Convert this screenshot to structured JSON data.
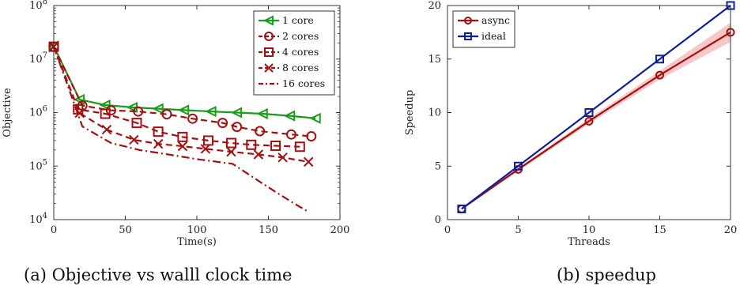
{
  "captions": {
    "left": "(a) Objective vs walll clock time",
    "right": "(b) speedup"
  },
  "chart_data": [
    {
      "type": "line",
      "xlabel": "Time(s)",
      "ylabel": "Objective",
      "xlim": [
        0,
        200
      ],
      "ylim": [
        10000,
        100000000
      ],
      "yscale": "log",
      "xticks": [
        0,
        50,
        100,
        150,
        200
      ],
      "yticks": [
        {
          "value": 10000,
          "base": "10",
          "exp": "4"
        },
        {
          "value": 100000,
          "base": "10",
          "exp": "5"
        },
        {
          "value": 1000000,
          "base": "10",
          "exp": "6"
        },
        {
          "value": 10000000,
          "base": "10",
          "exp": "7"
        },
        {
          "value": 100000000,
          "base": "10",
          "exp": "8"
        }
      ],
      "legend_position": "top-right",
      "series": [
        {
          "name": "1 core",
          "color": "#1a9e1a",
          "dash": "solid",
          "marker": "triangle-left",
          "x": [
            0,
            18,
            36,
            55,
            73,
            91,
            110,
            128,
            146,
            165,
            183
          ],
          "y": [
            17500000,
            1750000,
            1380000,
            1250000,
            1180000,
            1110000,
            1050000,
            1000000,
            950000,
            870000,
            780000
          ]
        },
        {
          "name": "2 cores",
          "color": "#a50f0f",
          "dash": "dashed",
          "marker": "circle",
          "x": [
            0,
            20,
            40,
            59,
            79,
            97,
            118,
            128,
            144,
            166,
            180
          ],
          "y": [
            17000000,
            1350000,
            1100000,
            1050000,
            930000,
            770000,
            640000,
            540000,
            450000,
            390000,
            360000
          ]
        },
        {
          "name": "4 cores",
          "color": "#a50f0f",
          "dash": "dashed",
          "marker": "square",
          "x": [
            0,
            17,
            36,
            58,
            73,
            90,
            108,
            124,
            138,
            155,
            172
          ],
          "y": [
            17000000,
            1150000,
            950000,
            640000,
            440000,
            350000,
            300000,
            270000,
            250000,
            240000,
            230000
          ]
        },
        {
          "name": "8 cores",
          "color": "#a50f0f",
          "dash": "dashed",
          "marker": "x",
          "x": [
            0,
            18,
            37,
            56,
            73,
            90,
            106,
            124,
            143,
            160,
            178
          ],
          "y": [
            17000000,
            980000,
            480000,
            310000,
            260000,
            235000,
            210000,
            185000,
            165000,
            145000,
            120000
          ]
        },
        {
          "name": "16 cores",
          "color": "#a50f0f",
          "dash": "dashdot",
          "marker": "none",
          "x": [
            0,
            20,
            40,
            60,
            80,
            100,
            125,
            140,
            155,
            168,
            178
          ],
          "y": [
            17000000,
            550000,
            270000,
            200000,
            165000,
            135000,
            110000,
            60000,
            33000,
            20000,
            14000
          ]
        }
      ]
    },
    {
      "type": "line",
      "xlabel": "Threads",
      "ylabel": "Speedup",
      "xlim": [
        0,
        20
      ],
      "ylim": [
        0,
        20
      ],
      "xticks": [
        0,
        5,
        10,
        15,
        20
      ],
      "yticks": [
        0,
        5,
        10,
        15,
        20
      ],
      "legend_position": "top-left",
      "series": [
        {
          "name": "async",
          "color": "#a50f0f",
          "marker": "circle",
          "x": [
            1,
            5,
            10,
            15,
            20
          ],
          "y": [
            1,
            4.7,
            9.2,
            13.5,
            17.5
          ],
          "band_low": [
            0.95,
            4.55,
            8.95,
            13.1,
            16.6
          ],
          "band_high": [
            1.05,
            4.85,
            9.45,
            13.9,
            18.4
          ],
          "band_color": "#f4b6b6"
        },
        {
          "name": "ideal",
          "color": "#0d1f9a",
          "marker": "square",
          "x": [
            1,
            5,
            10,
            15,
            20
          ],
          "y": [
            1,
            5,
            10,
            15,
            20
          ]
        }
      ]
    }
  ]
}
